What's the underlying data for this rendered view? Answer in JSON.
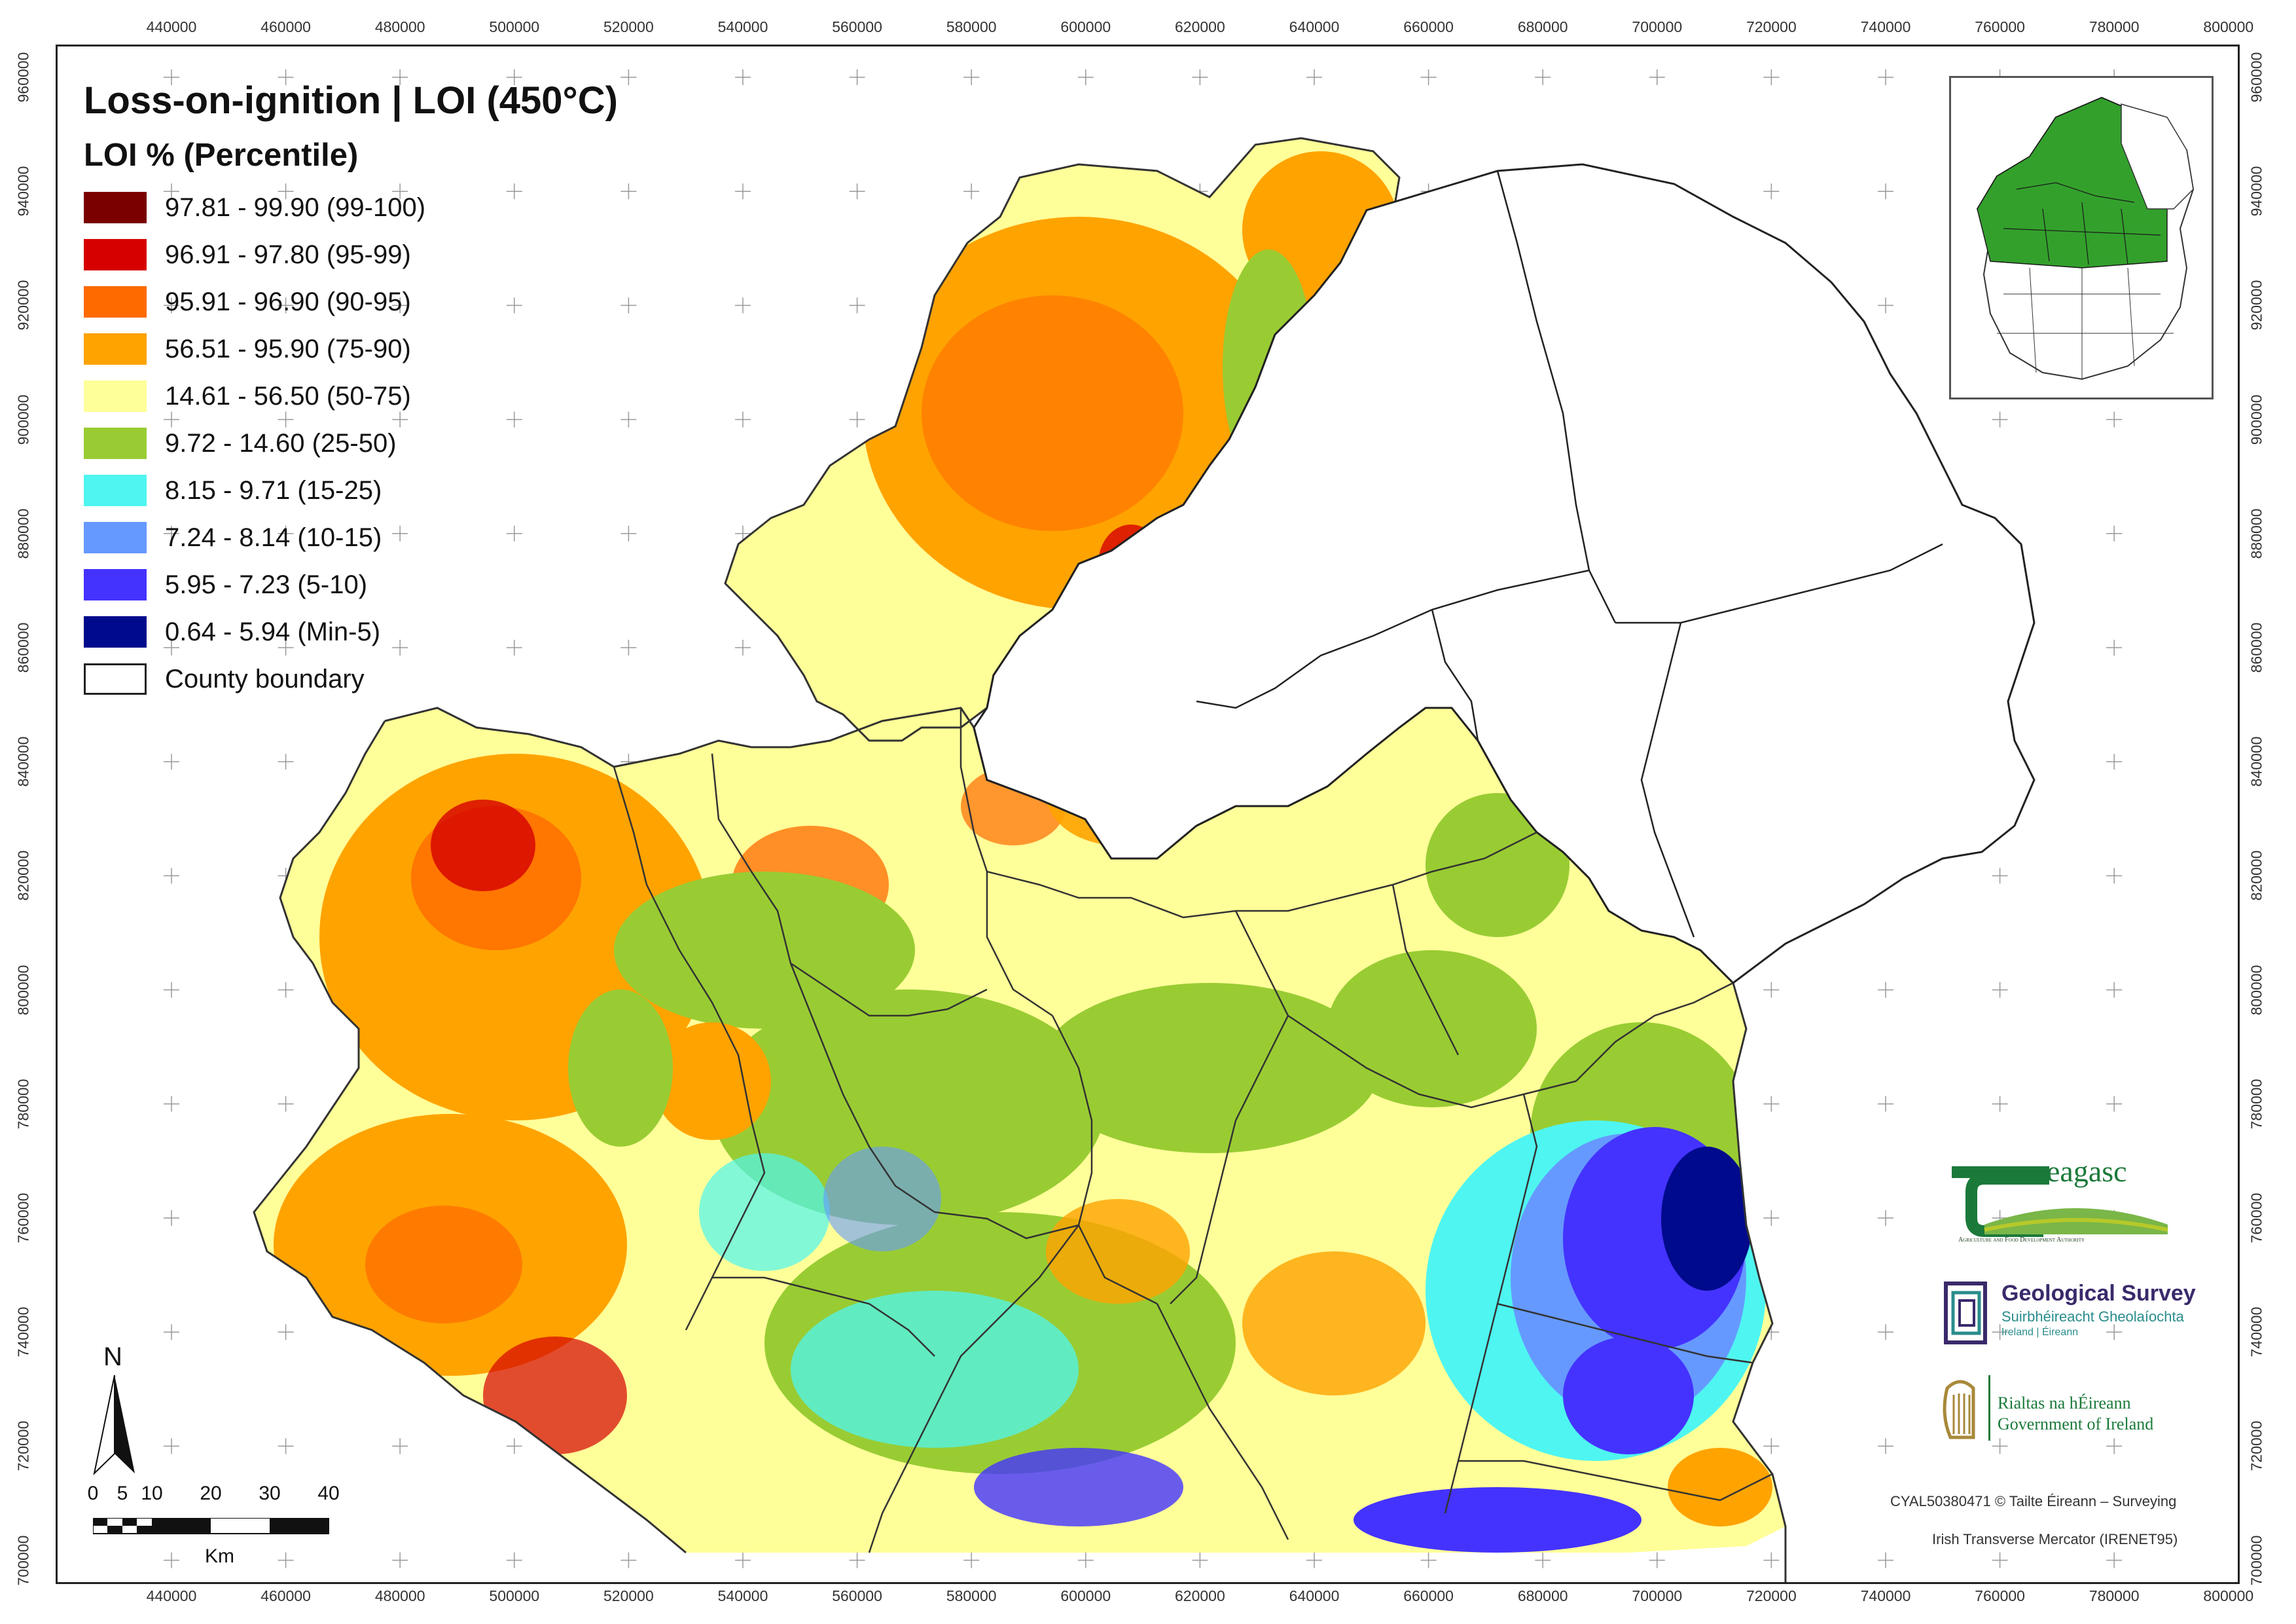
{
  "title": "Loss-on-ignition | LOI (450°C)",
  "legend": {
    "subtitle": "LOI % (Percentile)",
    "items": [
      {
        "label": "97.81 - 99.90 (99-100)",
        "color": "#7a0000"
      },
      {
        "label": "96.91 - 97.80 (95-99)",
        "color": "#d60000"
      },
      {
        "label": "95.91 - 96.90 (90-95)",
        "color": "#ff6a00"
      },
      {
        "label": "56.51 - 95.90 (75-90)",
        "color": "#ffa300"
      },
      {
        "label": "14.61 - 56.50 (50-75)",
        "color": "#ffff99"
      },
      {
        "label": "9.72 - 14.60 (25-50)",
        "color": "#99cc33"
      },
      {
        "label": "8.15 - 9.71 (15-25)",
        "color": "#4ff5f0"
      },
      {
        "label": "7.24 - 8.14 (10-15)",
        "color": "#6699ff"
      },
      {
        "label": "5.95 - 7.23 (5-10)",
        "color": "#4433ff"
      },
      {
        "label": "0.64 - 5.94 (Min-5)",
        "color": "#000a8c"
      },
      {
        "label": "County boundary",
        "color": "#ffffff"
      }
    ]
  },
  "axes": {
    "x_ticks": [
      "440000",
      "460000",
      "480000",
      "500000",
      "520000",
      "540000",
      "560000",
      "580000",
      "600000",
      "620000",
      "640000",
      "660000",
      "680000",
      "700000",
      "720000",
      "740000",
      "760000",
      "780000",
      "800000"
    ],
    "y_ticks": [
      "960000",
      "940000",
      "920000",
      "900000",
      "880000",
      "860000",
      "840000",
      "820000",
      "800000",
      "780000",
      "760000",
      "740000",
      "720000",
      "700000"
    ]
  },
  "scalebar": {
    "labels": [
      "0",
      "5",
      "10",
      "20",
      "30",
      "40"
    ],
    "unit": "Km"
  },
  "north_label": "N",
  "logos": {
    "teagasc_name": "eagasc",
    "teagasc_tagline": "Agriculture and Food Development Authority",
    "gsi_name": "Geological Survey",
    "gsi_irish": "Suirbhéireacht Gheolaíochta",
    "gsi_sub": "Ireland | Éireann",
    "gov_irish": "Rialtas na hÉireann",
    "gov_english": "Government of Ireland"
  },
  "credits": {
    "copyright": "CYAL50380471 © Tailte Éireann – Surveying",
    "projection": "Irish Transverse Mercator (IRENET95)"
  }
}
